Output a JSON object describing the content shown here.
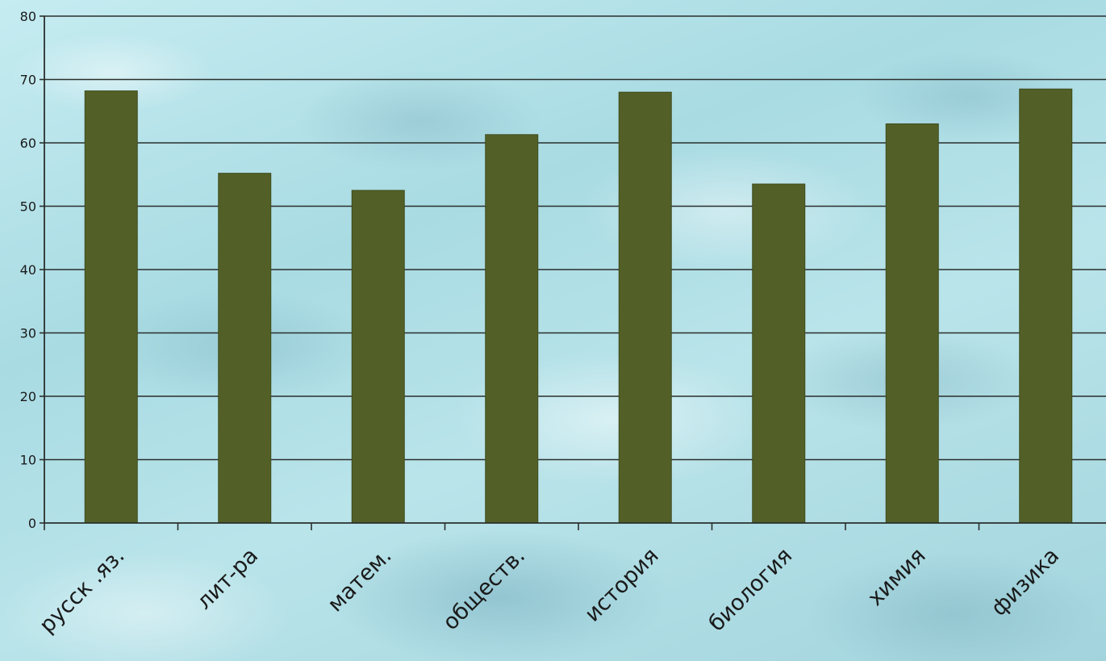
{
  "chart_data": {
    "type": "bar",
    "categories": [
      "русск .яз.",
      "лит-ра",
      "матем.",
      "обществ.",
      "история",
      "биология",
      "химия",
      "физика"
    ],
    "values": [
      68.2,
      55.2,
      52.5,
      61.3,
      68.0,
      53.5,
      63.0,
      68.5
    ],
    "ylim": [
      0,
      80
    ],
    "yticks": [
      0,
      10,
      20,
      30,
      40,
      50,
      60,
      70,
      80
    ],
    "grid": true,
    "bar_color": "#526027",
    "title": "",
    "xlabel": "",
    "ylabel": ""
  }
}
